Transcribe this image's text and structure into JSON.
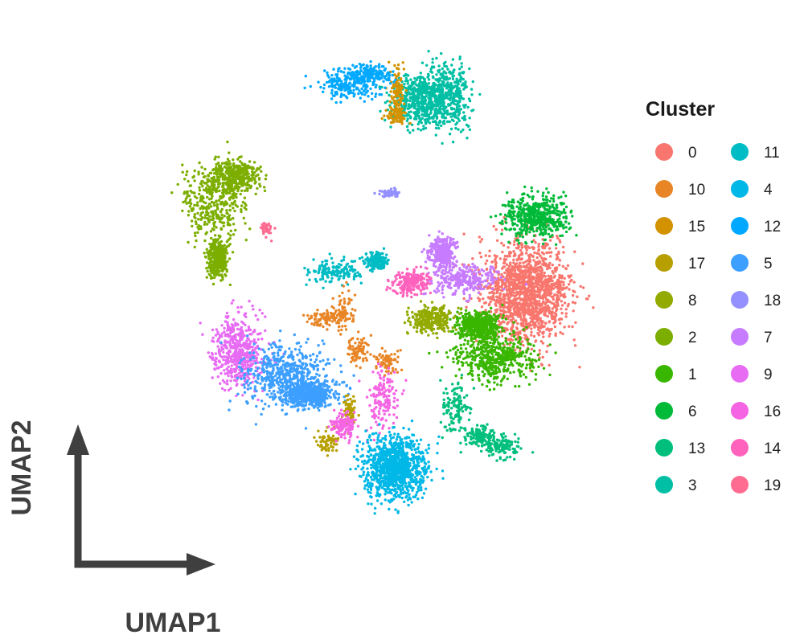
{
  "chart_data": {
    "type": "scatter",
    "xlabel": "UMAP1",
    "ylabel": "UMAP2",
    "title": "",
    "grid": false,
    "legend": {
      "title": "Cluster",
      "placement": "right",
      "columns": 2,
      "entries": [
        {
          "label": "0",
          "color": "#F8766D"
        },
        {
          "label": "10",
          "color": "#E88526"
        },
        {
          "label": "15",
          "color": "#D39200"
        },
        {
          "label": "17",
          "color": "#B79F00"
        },
        {
          "label": "8",
          "color": "#93AA00"
        },
        {
          "label": "2",
          "color": "#7CAE00"
        },
        {
          "label": "1",
          "color": "#39B600"
        },
        {
          "label": "6",
          "color": "#00BA38"
        },
        {
          "label": "13",
          "color": "#00BF7D"
        },
        {
          "label": "3",
          "color": "#00BFA4"
        },
        {
          "label": "11",
          "color": "#00BCC4"
        },
        {
          "label": "4",
          "color": "#00B8E7"
        },
        {
          "label": "12",
          "color": "#00A9FF"
        },
        {
          "label": "5",
          "color": "#3D9FFF"
        },
        {
          "label": "18",
          "color": "#9590FF"
        },
        {
          "label": "7",
          "color": "#C77CFF"
        },
        {
          "label": "9",
          "color": "#E76BF3"
        },
        {
          "label": "16",
          "color": "#F564E3"
        },
        {
          "label": "14",
          "color": "#FF62BC"
        },
        {
          "label": "19",
          "color": "#FF6C91"
        }
      ]
    },
    "clusters": [
      {
        "label": "0",
        "n": 1500,
        "blobs": [
          [
            -5.2,
            2.6,
            1.2,
            1.55
          ]
        ]
      },
      {
        "label": "6",
        "n": 520,
        "blobs": [
          [
            -5.5,
            4.9,
            0.9,
            0.65
          ]
        ]
      },
      {
        "label": "1",
        "n": 1000,
        "blobs": [
          [
            -4.3,
            0.6,
            1.1,
            0.7
          ],
          [
            -3.85,
            1.55,
            0.6,
            0.45
          ]
        ]
      },
      {
        "label": "7",
        "n": 600,
        "blobs": [
          [
            -3.4,
            3.0,
            1.0,
            0.45
          ],
          [
            -2.8,
            3.8,
            0.35,
            0.45
          ]
        ]
      },
      {
        "label": "14",
        "n": 220,
        "blobs": [
          [
            -1.9,
            2.9,
            0.55,
            0.35
          ]
        ]
      },
      {
        "label": "8",
        "n": 280,
        "blobs": [
          [
            -2.45,
            1.75,
            0.65,
            0.4
          ]
        ]
      },
      {
        "label": "11",
        "n": 320,
        "blobs": [
          [
            0.3,
            3.2,
            0.8,
            0.35
          ],
          [
            -0.9,
            3.55,
            0.35,
            0.25
          ]
        ]
      },
      {
        "label": "18",
        "n": 60,
        "blobs": [
          [
            -1.3,
            5.6,
            0.3,
            0.12
          ]
        ]
      },
      {
        "label": "3",
        "n": 900,
        "blobs": [
          [
            -2.9,
            8.6,
            0.7,
            1.0
          ],
          [
            -2.1,
            8.4,
            0.75,
            0.75
          ]
        ]
      },
      {
        "label": "15",
        "n": 180,
        "blobs": [
          [
            -1.5,
            8.7,
            0.2,
            0.7
          ],
          [
            -1.5,
            8.0,
            0.3,
            0.3
          ]
        ]
      },
      {
        "label": "12",
        "n": 380,
        "blobs": [
          [
            0.0,
            8.9,
            0.85,
            0.4
          ],
          [
            -0.7,
            9.2,
            0.6,
            0.3
          ]
        ]
      },
      {
        "label": "2",
        "n": 1100,
        "blobs": [
          [
            3.8,
            5.3,
            0.85,
            1.15
          ],
          [
            3.2,
            6.1,
            0.75,
            0.5
          ],
          [
            3.7,
            3.6,
            0.3,
            0.55
          ]
        ]
      },
      {
        "label": "19",
        "n": 45,
        "blobs": [
          [
            2.3,
            4.5,
            0.17,
            0.2
          ]
        ]
      },
      {
        "label": "9",
        "n": 520,
        "blobs": [
          [
            3.1,
            0.8,
            0.7,
            1.0
          ]
        ]
      },
      {
        "label": "5",
        "n": 1100,
        "blobs": [
          [
            1.75,
            0.1,
            1.15,
            0.9
          ],
          [
            1.1,
            -0.5,
            0.8,
            0.4
          ]
        ]
      },
      {
        "label": "10",
        "n": 320,
        "blobs": [
          [
            0.05,
            2.0,
            0.35,
            0.55
          ],
          [
            -0.35,
            0.85,
            0.3,
            0.45
          ],
          [
            -1.15,
            0.5,
            0.4,
            0.35
          ],
          [
            0.6,
            1.8,
            0.45,
            0.2
          ]
        ]
      },
      {
        "label": "17",
        "n": 130,
        "blobs": [
          [
            0.5,
            -2.0,
            0.3,
            0.35
          ],
          [
            -0.1,
            -1.0,
            0.18,
            0.4
          ]
        ]
      },
      {
        "label": "16",
        "n": 300,
        "blobs": [
          [
            -1.1,
            -0.6,
            0.4,
            0.9
          ],
          [
            0.05,
            -1.45,
            0.35,
            0.35
          ]
        ]
      },
      {
        "label": "4",
        "n": 1100,
        "blobs": [
          [
            -1.4,
            -2.7,
            0.85,
            0.95
          ]
        ]
      },
      {
        "label": "13",
        "n": 380,
        "blobs": [
          [
            -3.2,
            -0.9,
            0.4,
            0.85
          ],
          [
            -4.5,
            -2.1,
            0.5,
            0.35
          ],
          [
            -3.9,
            -1.8,
            0.4,
            0.3
          ]
        ]
      }
    ]
  }
}
